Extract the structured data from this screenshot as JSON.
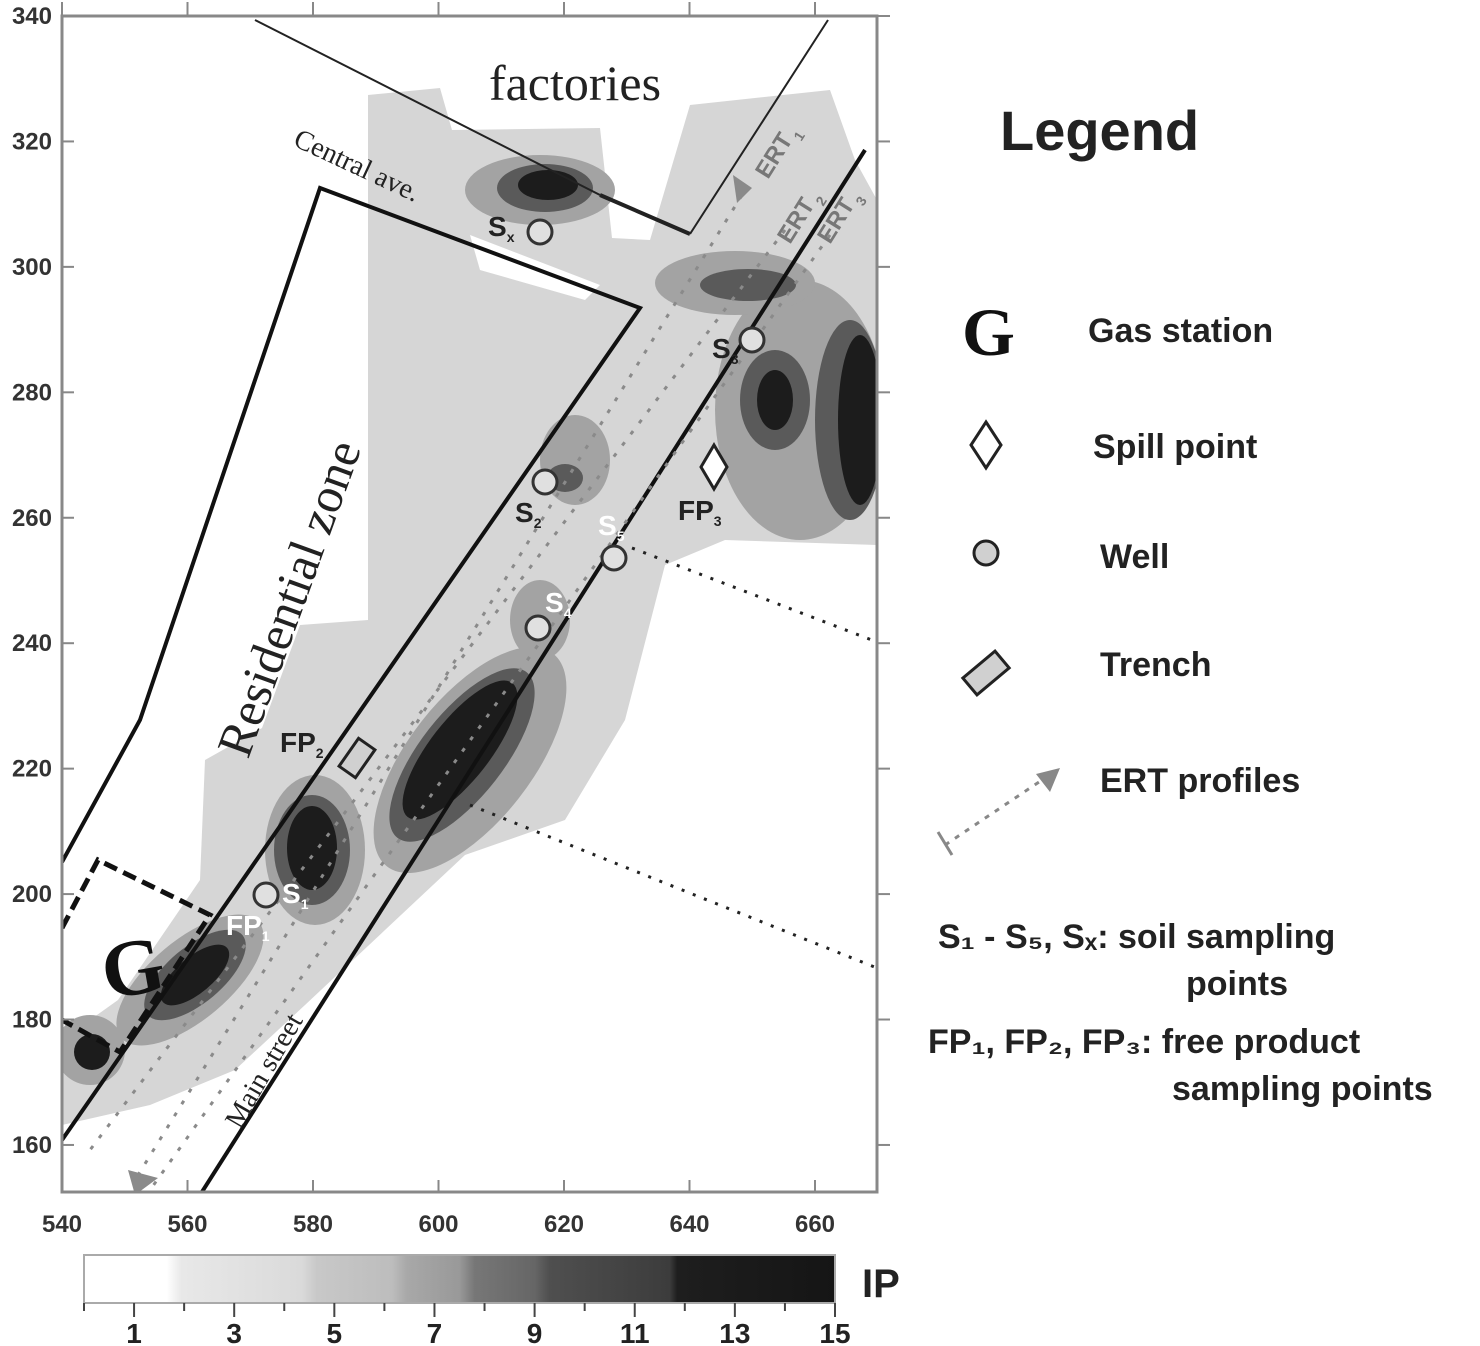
{
  "map": {
    "x_axis": {
      "ticks": [
        540,
        560,
        580,
        600,
        620,
        640,
        660
      ],
      "range": [
        540,
        670
      ]
    },
    "y_axis": {
      "ticks": [
        160,
        180,
        200,
        220,
        240,
        260,
        280,
        300,
        320,
        340
      ],
      "range": [
        152,
        340
      ]
    },
    "labels": {
      "factories": "factories",
      "central_ave": "Central ave.",
      "residential_zone": "Residential zone",
      "main_street": "Main street",
      "gas_station": "G",
      "ert1": "ERT",
      "ert1_sub": "1",
      "ert2": "ERT",
      "ert2_sub": "2",
      "ert3": "ERT",
      "ert3_sub": "3"
    },
    "wells": [
      {
        "label": "S",
        "sub": "x"
      },
      {
        "label": "S",
        "sub": "3"
      },
      {
        "label": "S",
        "sub": "2"
      },
      {
        "label": "S",
        "sub": "5"
      },
      {
        "label": "S",
        "sub": "4"
      },
      {
        "label": "S",
        "sub": "1"
      }
    ],
    "free_product": [
      {
        "label": "FP",
        "sub": "1"
      },
      {
        "label": "FP",
        "sub": "2"
      },
      {
        "label": "FP",
        "sub": "3"
      }
    ],
    "colors": {
      "light": "#d6d6d6",
      "mid": "#a3a3a3",
      "dark": "#5a5a5a",
      "darkest": "#1c1c1c"
    }
  },
  "legend": {
    "title": "Legend",
    "items": [
      {
        "symbol": "G",
        "icon": "gas-station-icon",
        "label": "Gas station"
      },
      {
        "icon": "diamond-icon",
        "label": "Spill point"
      },
      {
        "icon": "circle-icon",
        "label": "Well"
      },
      {
        "icon": "trench-icon",
        "label": "Trench"
      },
      {
        "icon": "dashed-arrow-icon",
        "label": "ERT profiles"
      }
    ],
    "note1_line1": "S₁ - S₅, Sₓ: soil sampling",
    "note1_line2": "points",
    "note2_line1": "FP₁, FP₂, FP₃: free product",
    "note2_line2": "sampling points"
  },
  "colorbar": {
    "label": "IP",
    "range": [
      0,
      15
    ],
    "tick_labels": [
      1,
      3,
      5,
      7,
      9,
      11,
      13,
      15
    ]
  }
}
